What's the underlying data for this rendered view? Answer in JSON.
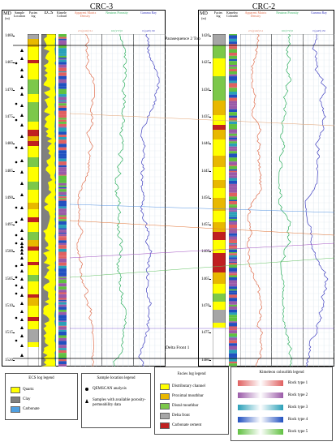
{
  "wells": [
    {
      "title": "CRC-3",
      "md_label": "MD",
      "md_unit": "(m)",
      "headers": {
        "sample": "Sample Location",
        "facies": "Facies log",
        "ecs": "ECS",
        "kimeleon": "Kimeleon Colourlith",
        "density": "Apparent Matrix Density",
        "density_scale": "2.5   (g/cm³)   3.1",
        "neutron": "Neutron Porosity",
        "neutron_scale": "0.6   (V/V)   0",
        "gamma": "Gamma Ray",
        "gamma_scale": "0   (gAPI)   150"
      },
      "depths": [
        "1460",
        "1465",
        "1470",
        "1475",
        "1480",
        "1485",
        "1490",
        "1495",
        "1500",
        "1505",
        "1510",
        "1515",
        "1520"
      ]
    },
    {
      "title": "CRC-2",
      "md_label": "MD",
      "md_unit": "(m)",
      "headers": {
        "facies": "Facies log",
        "kimeleon": "Kimeleon Colourlith",
        "density": "Apparent Matrix Density",
        "density_scale": "2.5   (g/cm³)   3.1",
        "neutron": "Neutron Porosity",
        "neutron_scale": "0.6   (V/V)   0",
        "gamma": "Gamma Ray",
        "gamma_scale": "0   (gAPI)   150"
      },
      "depths": [
        "1420",
        "1425",
        "1430",
        "1435",
        "1440",
        "1445",
        "1450",
        "1455",
        "1460",
        "1465",
        "1470",
        "1475",
        "1480"
      ]
    }
  ],
  "annotations": {
    "top": "Parasequence 2 Top",
    "bottom": "Delta Front 1"
  },
  "legends": {
    "ecs": {
      "title": "ECS log legend",
      "items": [
        {
          "label": "Quartz",
          "color": "#ffff00"
        },
        {
          "label": "Clay",
          "color": "#808080"
        },
        {
          "label": "Carbonate",
          "color": "#4f9fe0"
        }
      ]
    },
    "sample": {
      "title": "Sample location legend",
      "items": [
        {
          "label": "QEMSCAN analysis",
          "symbol": "circle"
        },
        {
          "label": "Samples with available porosity-permeability data",
          "symbol": "triangle"
        }
      ]
    },
    "facies": {
      "title": "Facies log legend",
      "items": [
        {
          "label": "Distributary channel",
          "color": "#ffff00"
        },
        {
          "label": "Proximal mouthbar",
          "color": "#e8b800"
        },
        {
          "label": "Distal mouthbar",
          "color": "#7cc84a"
        },
        {
          "label": "Delta front",
          "color": "#a6a6a6"
        },
        {
          "label": "Carbonate cement",
          "color": "#c02020"
        }
      ]
    },
    "kimeleon": {
      "title": "Kimeleon colourlith legend",
      "items": [
        {
          "label": "Rock type 1",
          "color": "#e06060"
        },
        {
          "label": "Rock type 2",
          "color": "#9a5aa8"
        },
        {
          "label": "Rock type 3",
          "color": "#2aa0b8"
        },
        {
          "label": "Rock type 4",
          "color": "#2050c0"
        },
        {
          "label": "Rock type 5",
          "color": "#60c040"
        }
      ]
    }
  },
  "colors": {
    "density": "#e07050",
    "neutron": "#30b060",
    "gamma": "#4040c0",
    "correlation_lines": [
      "#e0a070",
      "#5090e0",
      "#e07030",
      "#a050c0",
      "#60c060",
      "#8060d0"
    ]
  }
}
